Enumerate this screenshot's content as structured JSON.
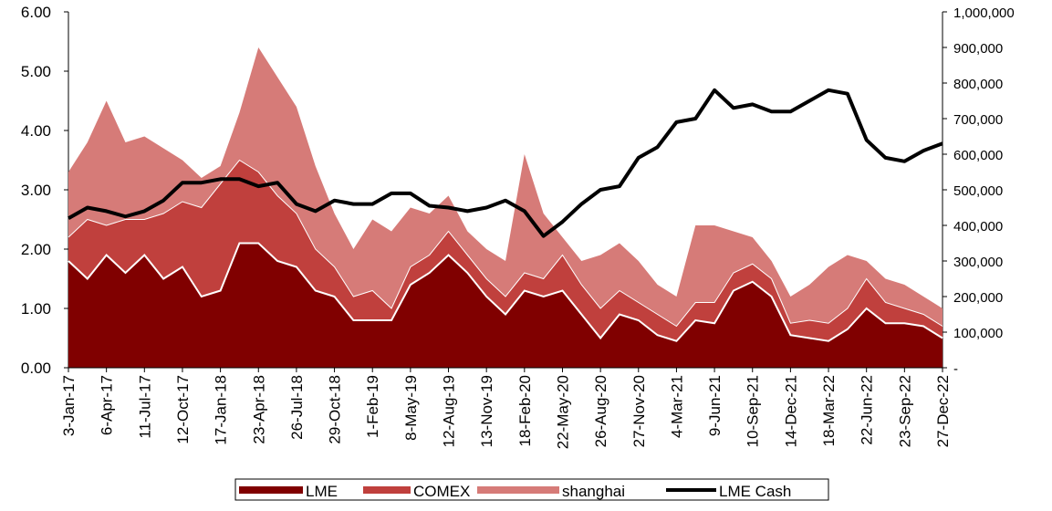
{
  "chart_data": {
    "type": "area",
    "categories": [
      "3-Jan-17",
      null,
      "6-Apr-17",
      null,
      "11-Jul-17",
      null,
      "12-Oct-17",
      null,
      "17-Jan-18",
      null,
      "23-Apr-18",
      null,
      "26-Jul-18",
      null,
      "29-Oct-18",
      null,
      "1-Feb-19",
      null,
      "8-May-19",
      null,
      "12-Aug-19",
      null,
      "13-Nov-19",
      null,
      "18-Feb-20",
      null,
      "22-May-20",
      null,
      "26-Aug-20",
      null,
      "27-Nov-20",
      null,
      "4-Mar-21",
      null,
      "9-Jun-21",
      null,
      "10-Sep-21",
      null,
      "14-Dec-21",
      null,
      "18-Mar-22",
      null,
      "22-Jun-22",
      null,
      "23-Sep-22",
      null,
      "27-Dec-22"
    ],
    "series": [
      {
        "name": "LME",
        "color": "#800000",
        "values": [
          1.8,
          1.5,
          1.9,
          1.6,
          1.9,
          1.5,
          1.7,
          1.2,
          1.3,
          2.1,
          2.1,
          1.8,
          1.7,
          1.3,
          1.2,
          0.8,
          0.8,
          0.8,
          1.4,
          1.6,
          1.9,
          1.6,
          1.2,
          0.9,
          1.3,
          1.2,
          1.3,
          0.9,
          0.5,
          0.9,
          0.8,
          0.55,
          0.45,
          0.8,
          0.75,
          1.3,
          1.45,
          1.2,
          0.55,
          0.5,
          0.45,
          0.65,
          1.0,
          0.75,
          0.75,
          0.7,
          0.5
        ]
      },
      {
        "name": "COMEX",
        "color": "#c0403d",
        "values": [
          0.4,
          1.0,
          0.5,
          0.9,
          0.6,
          1.1,
          1.1,
          1.5,
          1.8,
          1.4,
          1.2,
          1.1,
          0.9,
          0.7,
          0.5,
          0.4,
          0.5,
          0.2,
          0.3,
          0.3,
          0.4,
          0.3,
          0.3,
          0.3,
          0.3,
          0.3,
          0.6,
          0.5,
          0.5,
          0.4,
          0.3,
          0.35,
          0.25,
          0.3,
          0.35,
          0.3,
          0.3,
          0.3,
          0.2,
          0.3,
          0.3,
          0.35,
          0.5,
          0.35,
          0.25,
          0.2,
          0.2
        ]
      },
      {
        "name": "shanghai",
        "color": "#d67b78",
        "values": [
          1.1,
          1.3,
          2.1,
          1.3,
          1.4,
          1.1,
          0.7,
          0.5,
          0.3,
          0.8,
          2.1,
          2.0,
          1.8,
          1.4,
          0.9,
          0.8,
          1.2,
          1.3,
          1.0,
          0.7,
          0.6,
          0.4,
          0.5,
          0.6,
          2.0,
          1.1,
          0.3,
          0.4,
          0.9,
          0.8,
          0.7,
          0.5,
          0.5,
          1.3,
          1.3,
          0.7,
          0.45,
          0.3,
          0.45,
          0.6,
          0.95,
          0.9,
          0.3,
          0.4,
          0.4,
          0.3,
          0.3
        ]
      },
      {
        "name": "LME Cash",
        "color": "#000000",
        "type": "line",
        "axis": "y2",
        "values": [
          420000,
          450000,
          440000,
          425000,
          440000,
          470000,
          520000,
          520000,
          530000,
          530000,
          510000,
          520000,
          460000,
          440000,
          470000,
          460000,
          460000,
          490000,
          490000,
          455000,
          450000,
          440000,
          450000,
          470000,
          440000,
          370000,
          410000,
          460000,
          500000,
          510000,
          590000,
          620000,
          690000,
          700000,
          780000,
          730000,
          740000,
          720000,
          720000,
          750000,
          780000,
          770000,
          640000,
          590000,
          580000,
          610000,
          630000
        ]
      }
    ],
    "ylim": [
      0,
      6
    ],
    "yticks": [
      {
        "value": 0,
        "label": "0.00"
      },
      {
        "value": 1,
        "label": "1.00"
      },
      {
        "value": 2,
        "label": "2.00"
      },
      {
        "value": 3,
        "label": "3.00"
      },
      {
        "value": 4,
        "label": "4.00"
      },
      {
        "value": 5,
        "label": "5.00"
      },
      {
        "value": 6,
        "label": "6.00"
      }
    ],
    "y2lim": [
      0,
      1000000
    ],
    "y2ticks": [
      {
        "value": 0,
        "label": "-"
      },
      {
        "value": 100000,
        "label": "100,000"
      },
      {
        "value": 200000,
        "label": "200,000"
      },
      {
        "value": 300000,
        "label": "300,000"
      },
      {
        "value": 400000,
        "label": "400,000"
      },
      {
        "value": 500000,
        "label": "500,000"
      },
      {
        "value": 600000,
        "label": "600,000"
      },
      {
        "value": 700000,
        "label": "700,000"
      },
      {
        "value": 800000,
        "label": "800,000"
      },
      {
        "value": 900000,
        "label": "900,000"
      },
      {
        "value": 1000000,
        "label": "1,000,000"
      }
    ],
    "legend": "bottom"
  }
}
